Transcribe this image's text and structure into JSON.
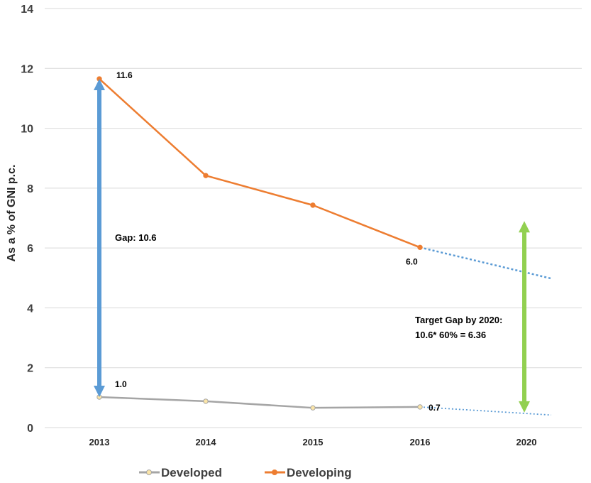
{
  "chart_data": {
    "type": "line",
    "title": "",
    "xlabel": "",
    "ylabel": "As a % of GNI p.c.",
    "categories": [
      "2013",
      "2014",
      "2015",
      "2016",
      "2020"
    ],
    "ylim": [
      0,
      14
    ],
    "yticks": [
      0,
      2,
      4,
      6,
      8,
      10,
      12,
      14
    ],
    "grid": true,
    "legend_position": "bottom",
    "series": [
      {
        "name": "Developed",
        "color": "#a5a5a5",
        "marker_fill": "#fbe5a8",
        "values": [
          1.02,
          0.88,
          0.66,
          0.69,
          null
        ],
        "projection": {
          "from": "2016",
          "to": "2020",
          "from_value": 0.69,
          "to_value": 0.42
        }
      },
      {
        "name": "Developing",
        "color": "#ed7d31",
        "marker_fill": "#ed7d31",
        "values": [
          11.65,
          8.42,
          7.43,
          6.02,
          null
        ],
        "projection": {
          "from": "2016",
          "to": "2020",
          "from_value": 6.02,
          "to_value": 4.98
        }
      }
    ],
    "projection_color": "#5b9bd5",
    "data_labels": [
      {
        "text": "11.6",
        "series": "Developing",
        "category": "2013",
        "value": 11.65
      },
      {
        "text": "6.0",
        "series": "Developing",
        "category": "2016",
        "value": 6.02
      },
      {
        "text": "1.0",
        "series": "Developed",
        "category": "2013",
        "value": 1.02
      },
      {
        "text": "0.7",
        "series": "Developed",
        "category": "2016",
        "value": 0.69
      }
    ],
    "annotations": {
      "gap_arrow": {
        "category": "2013",
        "from_value": 1.02,
        "to_value": 11.65,
        "color": "#5b9bd5",
        "label": "Gap: 10.6"
      },
      "target_arrow": {
        "category": "2020",
        "from_value": 0.5,
        "to_value": 6.9,
        "color": "#92d050",
        "label_line1": "Target Gap by 2020:",
        "label_line2": "10.6* 60% = 6.36"
      }
    }
  }
}
